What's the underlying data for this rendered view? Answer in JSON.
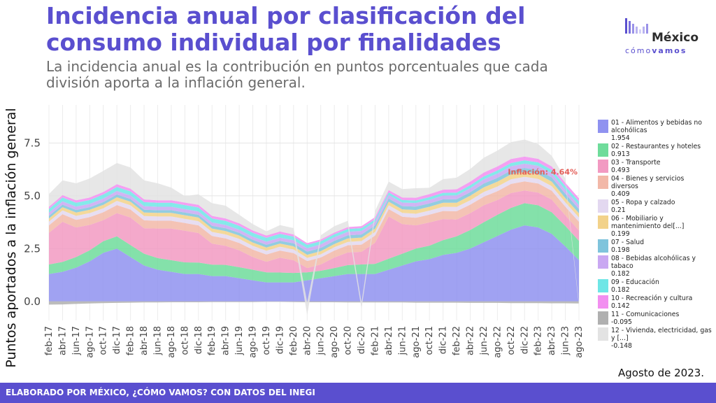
{
  "header": {
    "title": "Incidencia anual por clasificación del consumo individual por finalidades",
    "subtitle": "La incidencia anual es la contribución en puntos porcentuales que cada división aporta a la inflación general."
  },
  "logo": {
    "main": "México",
    "sub_a": "cómo",
    "sub_b": "vamos"
  },
  "footer": {
    "text": "ELABORADO POR MÉXICO, ¿CÓMO VAMOS? CON DATOS DEL INEGI",
    "date_note": "Agosto de 2023."
  },
  "colors": {
    "accent": "#5a4fcf",
    "footer_bg": "#5a4fcf",
    "annotation": "#e35d57"
  },
  "chart_data": {
    "type": "area",
    "stacked": true,
    "ylabel": "Puntos aportados a la inflación general",
    "ylim": [
      -0.9,
      9.3
    ],
    "yticks": [
      0.0,
      2.5,
      5.0,
      7.5
    ],
    "ytick_labels": [
      "0.0",
      "2.5",
      "5.0",
      "7.5"
    ],
    "x_tick_labels": [
      "feb-17",
      "abr-17",
      "jun-17",
      "ago-17",
      "oct-17",
      "dic-17",
      "feb-18",
      "abr-18",
      "jun-18",
      "ago-18",
      "oct-18",
      "dic-18",
      "feb-19",
      "abr-19",
      "jun-19",
      "ago-19",
      "oct-19",
      "dic-19",
      "feb-20",
      "abr-20",
      "jun-20",
      "ago-20",
      "oct-20",
      "dic-20",
      "feb-21",
      "abr-21",
      "jun-21",
      "ago-21",
      "oct-21",
      "dic-21",
      "feb-22",
      "abr-22",
      "jun-22",
      "ago-22",
      "oct-22",
      "dic-22",
      "feb-23",
      "abr-23",
      "jun-23",
      "ago-23"
    ],
    "annotation": {
      "text": "Inflación: 4.64%",
      "x": "ago-23",
      "y": 4.64
    },
    "grid": true,
    "legend_position": "right",
    "series": [
      {
        "name": "01 - Alimentos y bebidas no alcohólicas",
        "latest": "1.954",
        "color": "#8f92f0",
        "values": [
          1.3,
          1.4,
          1.6,
          1.9,
          2.3,
          2.5,
          2.1,
          1.7,
          1.5,
          1.4,
          1.3,
          1.3,
          1.2,
          1.2,
          1.1,
          1.0,
          0.9,
          0.9,
          0.9,
          1.0,
          1.1,
          1.2,
          1.3,
          1.3,
          1.3,
          1.5,
          1.7,
          1.9,
          2.0,
          2.2,
          2.3,
          2.5,
          2.8,
          3.1,
          3.4,
          3.6,
          3.5,
          3.2,
          2.6,
          1.954
        ]
      },
      {
        "name": "02 - Restaurantes y hoteles",
        "latest": "0.913",
        "color": "#6fdc9b",
        "values": [
          0.45,
          0.47,
          0.5,
          0.52,
          0.55,
          0.58,
          0.57,
          0.56,
          0.55,
          0.55,
          0.55,
          0.54,
          0.54,
          0.53,
          0.52,
          0.5,
          0.48,
          0.47,
          0.45,
          0.38,
          0.35,
          0.38,
          0.42,
          0.45,
          0.48,
          0.52,
          0.56,
          0.6,
          0.64,
          0.7,
          0.78,
          0.88,
          0.95,
          1.0,
          1.03,
          1.05,
          1.05,
          1.02,
          0.97,
          0.913
        ]
      },
      {
        "name": "03 - Transporte",
        "latest": "0.493",
        "color": "#f29ac2",
        "values": [
          1.5,
          1.9,
          1.4,
          1.2,
          1.0,
          1.1,
          1.3,
          1.2,
          1.4,
          1.5,
          1.5,
          1.4,
          1.0,
          0.9,
          0.8,
          0.6,
          0.5,
          0.7,
          0.6,
          0.2,
          0.3,
          0.5,
          0.6,
          0.6,
          1.0,
          2.0,
          1.4,
          1.1,
          1.1,
          1.0,
          0.8,
          0.8,
          0.8,
          0.7,
          0.7,
          0.6,
          0.6,
          0.6,
          0.5,
          0.493
        ]
      },
      {
        "name": "04 - Bienes y servicios diversos",
        "latest": "0.409",
        "color": "#f2b8a8",
        "values": [
          0.35,
          0.36,
          0.36,
          0.37,
          0.37,
          0.38,
          0.38,
          0.38,
          0.37,
          0.37,
          0.36,
          0.36,
          0.36,
          0.35,
          0.35,
          0.35,
          0.34,
          0.34,
          0.34,
          0.33,
          0.33,
          0.33,
          0.34,
          0.34,
          0.34,
          0.35,
          0.35,
          0.36,
          0.37,
          0.38,
          0.39,
          0.4,
          0.41,
          0.42,
          0.43,
          0.43,
          0.43,
          0.42,
          0.41,
          0.409
        ]
      },
      {
        "name": "05 - Ropa y calzado",
        "latest": "0.21",
        "color": "#e3d8f0",
        "values": [
          0.18,
          0.18,
          0.19,
          0.19,
          0.19,
          0.2,
          0.2,
          0.2,
          0.2,
          0.2,
          0.2,
          0.2,
          0.19,
          0.19,
          0.19,
          0.18,
          0.18,
          0.18,
          0.17,
          0.15,
          0.15,
          0.16,
          0.16,
          0.17,
          0.17,
          0.18,
          0.18,
          0.19,
          0.19,
          0.2,
          0.2,
          0.21,
          0.22,
          0.22,
          0.22,
          0.22,
          0.22,
          0.22,
          0.21,
          0.21
        ]
      },
      {
        "name": "06 - Mobiliario y mantenimiento del[...]",
        "latest": "0.199",
        "color": "#f2d28a",
        "values": [
          0.15,
          0.15,
          0.16,
          0.16,
          0.16,
          0.17,
          0.17,
          0.17,
          0.17,
          0.17,
          0.17,
          0.17,
          0.16,
          0.16,
          0.16,
          0.16,
          0.15,
          0.15,
          0.15,
          0.15,
          0.15,
          0.15,
          0.16,
          0.16,
          0.16,
          0.17,
          0.17,
          0.18,
          0.18,
          0.19,
          0.2,
          0.21,
          0.22,
          0.23,
          0.23,
          0.23,
          0.22,
          0.21,
          0.2,
          0.199
        ]
      },
      {
        "name": "07 - Salud",
        "latest": "0.198",
        "color": "#7fc4dc",
        "values": [
          0.12,
          0.12,
          0.12,
          0.12,
          0.13,
          0.13,
          0.13,
          0.13,
          0.13,
          0.13,
          0.13,
          0.13,
          0.13,
          0.13,
          0.13,
          0.13,
          0.13,
          0.13,
          0.14,
          0.15,
          0.15,
          0.15,
          0.15,
          0.15,
          0.15,
          0.15,
          0.15,
          0.16,
          0.16,
          0.16,
          0.17,
          0.17,
          0.18,
          0.18,
          0.19,
          0.19,
          0.2,
          0.2,
          0.2,
          0.198
        ]
      },
      {
        "name": "08 - Bebidas alcohólicas y tabaco",
        "latest": "0.182",
        "color": "#c9a8f2",
        "values": [
          0.15,
          0.16,
          0.16,
          0.16,
          0.17,
          0.17,
          0.17,
          0.17,
          0.16,
          0.16,
          0.16,
          0.16,
          0.16,
          0.16,
          0.15,
          0.15,
          0.15,
          0.15,
          0.15,
          0.16,
          0.17,
          0.17,
          0.17,
          0.17,
          0.17,
          0.17,
          0.17,
          0.17,
          0.17,
          0.18,
          0.18,
          0.19,
          0.2,
          0.2,
          0.2,
          0.2,
          0.2,
          0.19,
          0.19,
          0.182
        ]
      },
      {
        "name": "09 - Educación",
        "latest": "0.182",
        "color": "#6fe6e6",
        "values": [
          0.18,
          0.18,
          0.18,
          0.18,
          0.19,
          0.19,
          0.19,
          0.19,
          0.19,
          0.19,
          0.19,
          0.19,
          0.19,
          0.19,
          0.18,
          0.18,
          0.18,
          0.18,
          0.17,
          0.16,
          0.15,
          0.14,
          0.13,
          0.13,
          0.12,
          0.12,
          0.12,
          0.12,
          0.13,
          0.13,
          0.13,
          0.14,
          0.14,
          0.15,
          0.15,
          0.16,
          0.16,
          0.17,
          0.18,
          0.182
        ]
      },
      {
        "name": "10 - Recreación y cultura",
        "latest": "0.142",
        "color": "#f28ff0",
        "values": [
          0.1,
          0.11,
          0.12,
          0.12,
          0.12,
          0.13,
          0.13,
          0.13,
          0.12,
          0.12,
          0.12,
          0.12,
          0.12,
          0.12,
          0.12,
          0.11,
          0.11,
          0.11,
          0.1,
          0.08,
          0.08,
          0.08,
          0.09,
          0.09,
          0.1,
          0.11,
          0.12,
          0.13,
          0.14,
          0.15,
          0.16,
          0.17,
          0.18,
          0.19,
          0.19,
          0.18,
          0.17,
          0.16,
          0.15,
          0.142
        ]
      },
      {
        "name": "11 - Comunicaciones",
        "latest": "-0.095",
        "color": "#b0b0b0",
        "values": [
          -0.15,
          -0.14,
          -0.12,
          -0.1,
          -0.08,
          -0.07,
          -0.06,
          -0.05,
          -0.05,
          -0.04,
          -0.04,
          -0.04,
          -0.03,
          -0.03,
          -0.03,
          -0.03,
          -0.02,
          -0.02,
          -0.03,
          -0.04,
          -0.04,
          -0.04,
          -0.05,
          -0.05,
          -0.05,
          -0.05,
          -0.05,
          -0.06,
          -0.06,
          -0.06,
          -0.06,
          -0.07,
          -0.07,
          -0.07,
          -0.08,
          -0.08,
          -0.08,
          -0.09,
          -0.09,
          -0.095
        ]
      },
      {
        "name": "12 - Vivienda, electricidad, gas y [...]",
        "latest": "-0.148",
        "color": "#e3e3e3",
        "values": [
          0.6,
          0.7,
          0.8,
          0.9,
          1.0,
          1.0,
          1.0,
          0.9,
          0.8,
          0.6,
          0.3,
          0.5,
          0.6,
          0.6,
          0.4,
          0.3,
          0.2,
          0.3,
          0.3,
          -0.6,
          0.2,
          0.3,
          0.3,
          -0.3,
          0.3,
          0.4,
          0.4,
          0.45,
          0.3,
          0.5,
          0.55,
          0.6,
          0.7,
          0.75,
          0.8,
          0.8,
          0.7,
          0.5,
          0.2,
          -0.148
        ]
      }
    ]
  }
}
